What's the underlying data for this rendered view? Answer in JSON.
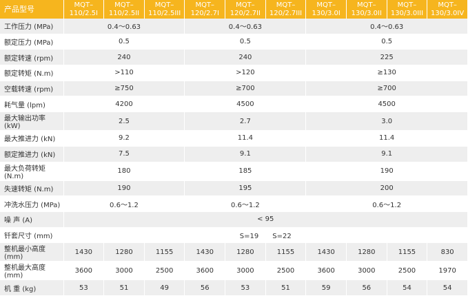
{
  "header": [
    "产品型号",
    "MQT–\n110/2.5I",
    "MQT–\n110/2.5II",
    "MQT–\n110/2.5III",
    "MQT–\n120/2.7I",
    "MQT–\n120/2.7II",
    "MQT–\n120/2.7III",
    "MQT–\n130/3.0I",
    "MQT–\n130/3.0II",
    "MQT–\n130/3.0III",
    "MQT–\n130/3.0IV"
  ],
  "rows": [
    {
      "label": "工作压力 (MPa)",
      "values": [
        "0.4～0.63",
        "0.4～0.63",
        "0.4～0.63"
      ]
    },
    {
      "label": "额定压力 (MPa)",
      "values": [
        "0.5",
        "0.5",
        "0.5"
      ]
    },
    {
      "label": "额定转速 (rpm)",
      "values": [
        "240",
        "240",
        "225"
      ]
    },
    {
      "label": "额定转矩 (N.m)",
      "values": [
        ">110",
        ">120",
        "≥130"
      ]
    },
    {
      "label": "空载转速 (rpm)",
      "values": [
        "≥750",
        "≥700",
        "≥700"
      ]
    },
    {
      "label": "耗气量 (lpm)",
      "values": [
        "4200",
        "4500",
        "4500"
      ]
    },
    {
      "label": "最大输出功率 (kW)",
      "values": [
        "2.5",
        "2.7",
        "3.0"
      ]
    },
    {
      "label": "最大推进力 (kN)",
      "values": [
        "9.2",
        "11.4",
        "11.4"
      ]
    },
    {
      "label": "额定推进力 (kN)",
      "values": [
        "7.5",
        "9.1",
        "9.1"
      ]
    },
    {
      "label": "最大负荷转矩 (N.m)",
      "values": [
        "180",
        "185",
        "190"
      ]
    },
    {
      "label": "失速转矩 (N.m)",
      "values": [
        "190",
        "195",
        "200"
      ]
    },
    {
      "label": "冲洗水压力 (MPa)",
      "values": [
        "0.6～1.2",
        "0.6～1.2",
        "0.6～1.2"
      ]
    },
    {
      "label": "噪 声 (A)",
      "values": [
        "< 95"
      ]
    },
    {
      "label": "钎套尺寸 (mm)",
      "values": [
        "S=19　　S=22"
      ]
    },
    {
      "label": "整机最小高度 (mm)",
      "values": [
        "1430",
        "1280",
        "1155",
        "1430",
        "1280",
        "1155",
        "1430",
        "1280",
        "1155",
        "830"
      ]
    },
    {
      "label": "整机最大高度 (mm)",
      "values": [
        "3600",
        "3000",
        "2500",
        "3600",
        "3000",
        "2500",
        "3600",
        "3000",
        "2500",
        "1970"
      ]
    },
    {
      "label": "机 重 (kg)",
      "values": [
        "53",
        "51",
        "49",
        "56",
        "53",
        "51",
        "59",
        "56",
        "54",
        "54"
      ]
    }
  ]
}
